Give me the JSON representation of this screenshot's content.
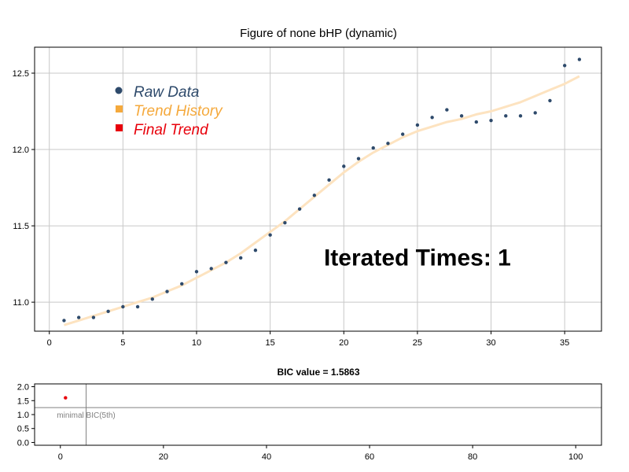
{
  "chart_data": [
    {
      "type": "scatter",
      "title": "Figure of none bHP (dynamic)",
      "xlim": [
        -1,
        37.5
      ],
      "ylim": [
        10.81,
        12.67
      ],
      "x_ticks": [
        0,
        5,
        10,
        15,
        20,
        25,
        30,
        35
      ],
      "y_ticks": [
        11.0,
        11.5,
        12.0,
        12.5
      ],
      "y_tick_labels": [
        "11.0",
        "11.5",
        "12.0",
        "12.5"
      ],
      "grid": true,
      "legend_position": "top-left",
      "legend": [
        {
          "label": "Raw Data",
          "color": "#2e4a6b",
          "shape": "circle"
        },
        {
          "label": "Trend History",
          "color": "#f5a93c",
          "shape": "square"
        },
        {
          "label": "Final Trend",
          "color": "#e8000b",
          "shape": "square"
        }
      ],
      "series": [
        {
          "name": "Raw Data",
          "color": "#2e4a6b",
          "x": [
            1,
            2,
            3,
            4,
            5,
            6,
            7,
            8,
            9,
            10,
            11,
            12,
            13,
            14,
            15,
            16,
            17,
            18,
            19,
            20,
            21,
            22,
            23,
            24,
            25,
            26,
            27,
            28,
            29,
            30,
            31,
            32,
            33,
            34,
            35,
            36
          ],
          "y": [
            10.88,
            10.9,
            10.9,
            10.94,
            10.97,
            10.97,
            11.02,
            11.07,
            11.12,
            11.2,
            11.22,
            11.26,
            11.29,
            11.34,
            11.44,
            11.52,
            11.61,
            11.7,
            11.8,
            11.89,
            11.94,
            12.01,
            12.04,
            12.1,
            12.16,
            12.21,
            12.26,
            12.22,
            12.18,
            12.19,
            12.22,
            12.22,
            12.24,
            12.32,
            12.55,
            12.59
          ]
        },
        {
          "name": "Trend History",
          "color": "#fde3c0",
          "x": [
            1,
            2,
            3,
            4,
            5,
            6,
            7,
            8,
            9,
            10,
            11,
            12,
            13,
            14,
            15,
            16,
            17,
            18,
            19,
            20,
            21,
            22,
            23,
            24,
            25,
            26,
            27,
            28,
            29,
            30,
            31,
            32,
            33,
            34,
            35,
            36
          ],
          "y": [
            10.85,
            10.88,
            10.91,
            10.94,
            10.97,
            11.0,
            11.03,
            11.07,
            11.11,
            11.16,
            11.21,
            11.26,
            11.32,
            11.39,
            11.46,
            11.53,
            11.61,
            11.69,
            11.77,
            11.85,
            11.92,
            11.98,
            12.03,
            12.08,
            12.12,
            12.15,
            12.18,
            12.2,
            12.23,
            12.25,
            12.28,
            12.31,
            12.35,
            12.39,
            12.43,
            12.48
          ]
        }
      ],
      "annotation": "Iterated Times: 1",
      "annotation_x": 25,
      "annotation_y": 11.24
    },
    {
      "type": "scatter",
      "title": "BIC value = 1.5863",
      "xlim": [
        -5,
        105
      ],
      "ylim": [
        -0.1,
        2.1
      ],
      "x_ticks": [
        0,
        20,
        40,
        60,
        80,
        100
      ],
      "y_ticks": [
        0.0,
        0.5,
        1.0,
        1.5,
        2.0
      ],
      "y_tick_labels": [
        "0.0",
        "0.5",
        "1.0",
        "1.5",
        "2.0"
      ],
      "points": [
        {
          "x": 1,
          "y": 1.6,
          "color": "#e8000b"
        }
      ],
      "hline": 1.25,
      "vline": 5,
      "annotation": "minimal BIC(5th)",
      "annotation_x": 5,
      "annotation_y": 1.0
    }
  ]
}
